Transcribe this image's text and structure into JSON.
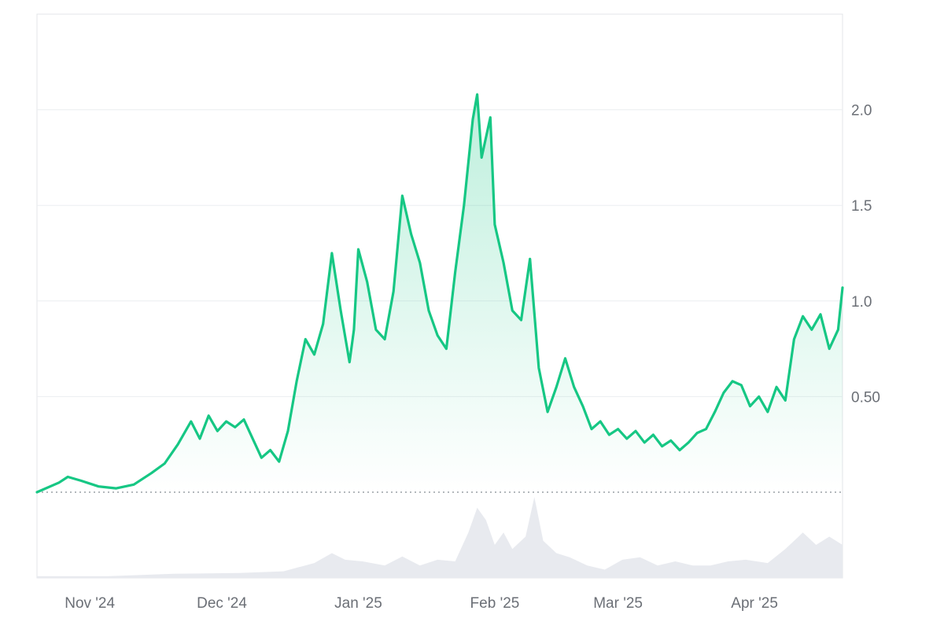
{
  "chart_data": {
    "type": "area",
    "title": "",
    "xlabel": "",
    "ylabel": "",
    "x_range": [
      "2024-10-20",
      "2025-04-21"
    ],
    "ylim": [
      0.0,
      2.5
    ],
    "baseline": 0.0,
    "grid": true,
    "legend": "none",
    "y_ticks": [
      {
        "value": 0.5,
        "label": "0.50"
      },
      {
        "value": 1.0,
        "label": "1.0"
      },
      {
        "value": 1.5,
        "label": "1.5"
      },
      {
        "value": 2.0,
        "label": "2.0"
      }
    ],
    "x_ticks": [
      {
        "date": "2024-11-01",
        "label": "Nov '24"
      },
      {
        "date": "2024-12-01",
        "label": "Dec '24"
      },
      {
        "date": "2025-01-01",
        "label": "Jan '25"
      },
      {
        "date": "2025-02-01",
        "label": "Feb '25"
      },
      {
        "date": "2025-03-01",
        "label": "Mar '25"
      },
      {
        "date": "2025-04-01",
        "label": "Apr '25"
      }
    ],
    "colors": {
      "line": "#16c784",
      "volume": "#e8eaef",
      "baseline": "#9aa0a6",
      "grid": "#eceef1",
      "axis_text": "#6b6f76"
    },
    "series": [
      {
        "kind": "price",
        "points": [
          [
            "2024-10-20",
            0.0
          ],
          [
            "2024-10-25",
            0.05
          ],
          [
            "2024-10-27",
            0.08
          ],
          [
            "2024-10-30",
            0.06
          ],
          [
            "2024-11-03",
            0.03
          ],
          [
            "2024-11-07",
            0.02
          ],
          [
            "2024-11-11",
            0.04
          ],
          [
            "2024-11-15",
            0.1
          ],
          [
            "2024-11-18",
            0.15
          ],
          [
            "2024-11-21",
            0.25
          ],
          [
            "2024-11-24",
            0.37
          ],
          [
            "2024-11-26",
            0.28
          ],
          [
            "2024-11-28",
            0.4
          ],
          [
            "2024-11-30",
            0.32
          ],
          [
            "2024-12-02",
            0.37
          ],
          [
            "2024-12-04",
            0.34
          ],
          [
            "2024-12-06",
            0.38
          ],
          [
            "2024-12-08",
            0.28
          ],
          [
            "2024-12-10",
            0.18
          ],
          [
            "2024-12-12",
            0.22
          ],
          [
            "2024-12-14",
            0.16
          ],
          [
            "2024-12-16",
            0.32
          ],
          [
            "2024-12-18",
            0.58
          ],
          [
            "2024-12-20",
            0.8
          ],
          [
            "2024-12-22",
            0.72
          ],
          [
            "2024-12-24",
            0.88
          ],
          [
            "2024-12-26",
            1.25
          ],
          [
            "2024-12-28",
            0.95
          ],
          [
            "2024-12-30",
            0.68
          ],
          [
            "2024-12-31",
            0.85
          ],
          [
            "2025-01-01",
            1.27
          ],
          [
            "2025-01-03",
            1.1
          ],
          [
            "2025-01-05",
            0.85
          ],
          [
            "2025-01-07",
            0.8
          ],
          [
            "2025-01-09",
            1.05
          ],
          [
            "2025-01-11",
            1.55
          ],
          [
            "2025-01-13",
            1.35
          ],
          [
            "2025-01-15",
            1.2
          ],
          [
            "2025-01-17",
            0.95
          ],
          [
            "2025-01-19",
            0.82
          ],
          [
            "2025-01-21",
            0.75
          ],
          [
            "2025-01-23",
            1.15
          ],
          [
            "2025-01-25",
            1.5
          ],
          [
            "2025-01-27",
            1.95
          ],
          [
            "2025-01-28",
            2.08
          ],
          [
            "2025-01-29",
            1.75
          ],
          [
            "2025-01-31",
            1.96
          ],
          [
            "2025-02-01",
            1.4
          ],
          [
            "2025-02-03",
            1.2
          ],
          [
            "2025-02-05",
            0.95
          ],
          [
            "2025-02-07",
            0.9
          ],
          [
            "2025-02-09",
            1.22
          ],
          [
            "2025-02-11",
            0.65
          ],
          [
            "2025-02-13",
            0.42
          ],
          [
            "2025-02-15",
            0.55
          ],
          [
            "2025-02-17",
            0.7
          ],
          [
            "2025-02-19",
            0.55
          ],
          [
            "2025-02-21",
            0.45
          ],
          [
            "2025-02-23",
            0.33
          ],
          [
            "2025-02-25",
            0.37
          ],
          [
            "2025-02-27",
            0.3
          ],
          [
            "2025-03-01",
            0.33
          ],
          [
            "2025-03-03",
            0.28
          ],
          [
            "2025-03-05",
            0.32
          ],
          [
            "2025-03-07",
            0.26
          ],
          [
            "2025-03-09",
            0.3
          ],
          [
            "2025-03-11",
            0.24
          ],
          [
            "2025-03-13",
            0.27
          ],
          [
            "2025-03-15",
            0.22
          ],
          [
            "2025-03-17",
            0.26
          ],
          [
            "2025-03-19",
            0.31
          ],
          [
            "2025-03-21",
            0.33
          ],
          [
            "2025-03-23",
            0.42
          ],
          [
            "2025-03-25",
            0.52
          ],
          [
            "2025-03-27",
            0.58
          ],
          [
            "2025-03-29",
            0.56
          ],
          [
            "2025-03-31",
            0.45
          ],
          [
            "2025-04-02",
            0.5
          ],
          [
            "2025-04-04",
            0.42
          ],
          [
            "2025-04-06",
            0.55
          ],
          [
            "2025-04-08",
            0.48
          ],
          [
            "2025-04-10",
            0.8
          ],
          [
            "2025-04-12",
            0.92
          ],
          [
            "2025-04-14",
            0.85
          ],
          [
            "2025-04-16",
            0.93
          ],
          [
            "2025-04-18",
            0.75
          ],
          [
            "2025-04-20",
            0.85
          ],
          [
            "2025-04-21",
            1.07
          ]
        ]
      },
      {
        "kind": "volume",
        "scale": "relative",
        "points": [
          [
            "2024-10-20",
            0.02
          ],
          [
            "2024-11-05",
            0.02
          ],
          [
            "2024-11-20",
            0.05
          ],
          [
            "2024-12-05",
            0.06
          ],
          [
            "2024-12-15",
            0.08
          ],
          [
            "2024-12-22",
            0.18
          ],
          [
            "2024-12-26",
            0.3
          ],
          [
            "2024-12-29",
            0.22
          ],
          [
            "2025-01-02",
            0.2
          ],
          [
            "2025-01-07",
            0.15
          ],
          [
            "2025-01-11",
            0.26
          ],
          [
            "2025-01-15",
            0.15
          ],
          [
            "2025-01-19",
            0.22
          ],
          [
            "2025-01-23",
            0.2
          ],
          [
            "2025-01-26",
            0.55
          ],
          [
            "2025-01-28",
            0.85
          ],
          [
            "2025-01-30",
            0.7
          ],
          [
            "2025-02-01",
            0.4
          ],
          [
            "2025-02-03",
            0.55
          ],
          [
            "2025-02-05",
            0.35
          ],
          [
            "2025-02-08",
            0.5
          ],
          [
            "2025-02-10",
            0.98
          ],
          [
            "2025-02-12",
            0.45
          ],
          [
            "2025-02-15",
            0.3
          ],
          [
            "2025-02-18",
            0.25
          ],
          [
            "2025-02-22",
            0.15
          ],
          [
            "2025-02-26",
            0.1
          ],
          [
            "2025-03-02",
            0.22
          ],
          [
            "2025-03-06",
            0.25
          ],
          [
            "2025-03-10",
            0.15
          ],
          [
            "2025-03-14",
            0.2
          ],
          [
            "2025-03-18",
            0.15
          ],
          [
            "2025-03-22",
            0.15
          ],
          [
            "2025-03-26",
            0.2
          ],
          [
            "2025-03-30",
            0.22
          ],
          [
            "2025-04-04",
            0.18
          ],
          [
            "2025-04-08",
            0.35
          ],
          [
            "2025-04-12",
            0.55
          ],
          [
            "2025-04-15",
            0.4
          ],
          [
            "2025-04-18",
            0.5
          ],
          [
            "2025-04-21",
            0.4
          ]
        ]
      }
    ]
  }
}
